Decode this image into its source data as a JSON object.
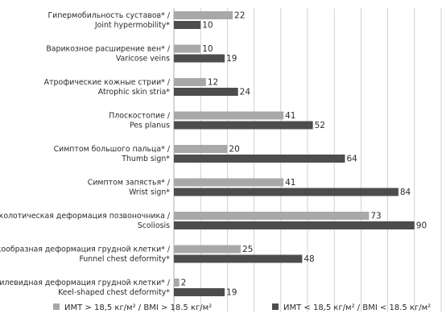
{
  "chart_data": {
    "type": "bar",
    "orientation": "horizontal",
    "categories": [
      [
        "Гипермобильность суставов* /",
        "Joint hypermobility*"
      ],
      [
        "Варикозное расширение вен* /",
        "Varicose veins"
      ],
      [
        "Атрофические кожные стрии* /",
        "Atrophic skin stria*"
      ],
      [
        "Плоскостопие /",
        "Pes planus"
      ],
      [
        "Симптом большого пальца* /",
        "Thumb sign*"
      ],
      [
        "Симптом запястья* /",
        "Wrist sign*"
      ],
      [
        "Сколотическая деформация позвоночника /",
        "Scoliosis"
      ],
      [
        "Воронкообразная деформация грудной клетки* /",
        "Funnel chest deformity*"
      ],
      [
        "Килевидная деформация грудной клетки* /",
        "Keel-shaped chest deformity*"
      ]
    ],
    "series": [
      {
        "name": "ИМТ > 18,5 кг/м² / BMI > 18.5 кг/м²",
        "color": "#a8a8a8",
        "values": [
          22,
          10,
          12,
          41,
          20,
          41,
          73,
          25,
          2
        ]
      },
      {
        "name": "ИМТ < 18,5 кг/м² / BMI < 18.5 кг/м²",
        "color": "#4d4d4d",
        "values": [
          10,
          19,
          24,
          52,
          64,
          84,
          90,
          48,
          19
        ]
      }
    ],
    "xlim": [
      0,
      100
    ],
    "grid": true,
    "legend_position": "bottom"
  }
}
